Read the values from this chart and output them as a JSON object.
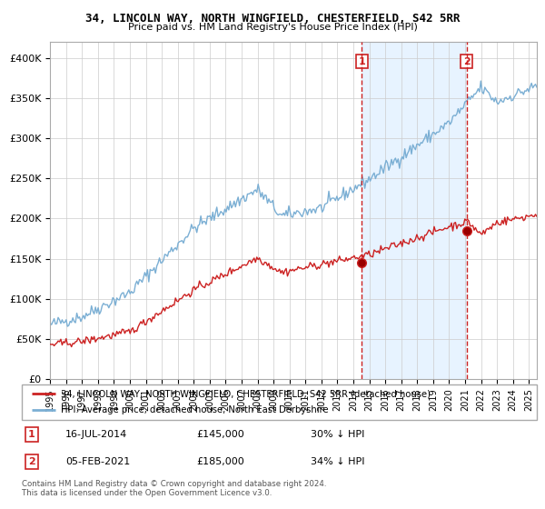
{
  "title1": "34, LINCOLN WAY, NORTH WINGFIELD, CHESTERFIELD, S42 5RR",
  "title2": "Price paid vs. HM Land Registry's House Price Index (HPI)",
  "legend_line1": "34, LINCOLN WAY, NORTH WINGFIELD, CHESTERFIELD, S42 5RR (detached house)",
  "legend_line2": "HPI: Average price, detached house, North East Derbyshire",
  "annotation1_label": "1",
  "annotation1_date": "16-JUL-2014",
  "annotation1_price": "£145,000",
  "annotation1_hpi": "30% ↓ HPI",
  "annotation2_label": "2",
  "annotation2_date": "05-FEB-2021",
  "annotation2_price": "£185,000",
  "annotation2_hpi": "34% ↓ HPI",
  "footer1": "Contains HM Land Registry data © Crown copyright and database right 2024.",
  "footer2": "This data is licensed under the Open Government Licence v3.0.",
  "hpi_color": "#7bafd4",
  "price_color": "#cc2222",
  "vline_color": "#cc2222",
  "shade_color": "#ddeeff",
  "ylim": [
    0,
    420000
  ],
  "yticks": [
    0,
    50000,
    100000,
    150000,
    200000,
    250000,
    300000,
    350000,
    400000
  ],
  "ytick_labels": [
    "£0",
    "£50K",
    "£100K",
    "£150K",
    "£200K",
    "£250K",
    "£300K",
    "£350K",
    "£400K"
  ],
  "xlim_start": 1995.0,
  "xlim_end": 2025.5,
  "marker1_x": 2014.54,
  "marker1_y": 145000,
  "marker2_x": 2021.09,
  "marker2_y": 185000
}
